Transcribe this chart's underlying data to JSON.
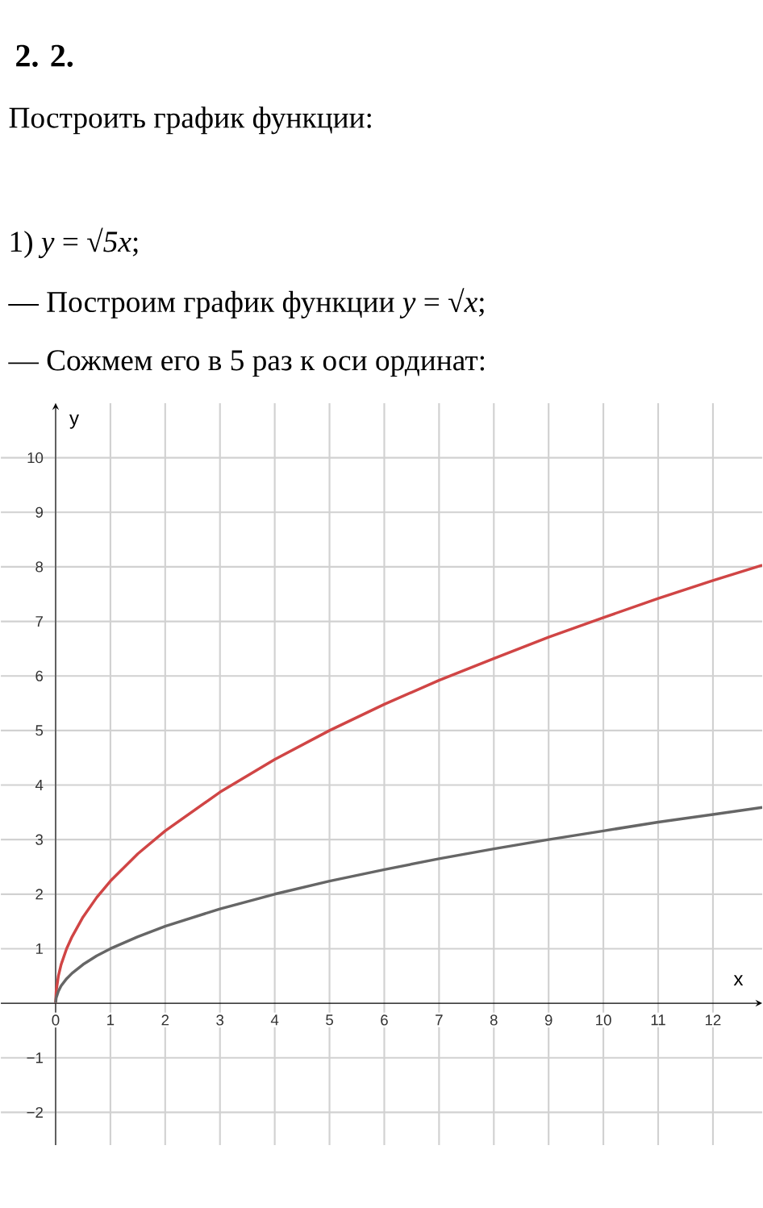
{
  "chart_data": {
    "type": "line",
    "title": "**2. 2.**",
    "subtitle": "Построить график функции:",
    "annotations": [
      "1) *y* = √*5x*;",
      "— Построим график функции *y* = √*x*;",
      "— Сожмем его в 5 раз к оси ординат:"
    ],
    "xlabel": "x",
    "ylabel": "y",
    "series": [
      {
        "color": "#d04545",
        "x": [
          0,
          0.01,
          0.05,
          0.1,
          0.2,
          0.3,
          0.5,
          0.75,
          1,
          1.5,
          2,
          3,
          4,
          5,
          6,
          7,
          8,
          9,
          10,
          11,
          12,
          12.9
        ],
        "values": [
          0,
          0.22,
          0.5,
          0.71,
          1,
          1.22,
          1.58,
          1.94,
          2.24,
          2.74,
          3.16,
          3.87,
          4.47,
          5,
          5.48,
          5.92,
          6.32,
          6.71,
          7.07,
          7.42,
          7.75,
          8.03
        ]
      },
      {
        "color": "#666666",
        "x": [
          0,
          0.01,
          0.05,
          0.1,
          0.2,
          0.3,
          0.5,
          0.75,
          1,
          1.5,
          2,
          3,
          4,
          5,
          6,
          7,
          8,
          9,
          10,
          11,
          12,
          12.9
        ],
        "values": [
          0,
          0.1,
          0.22,
          0.32,
          0.45,
          0.55,
          0.71,
          0.87,
          1,
          1.22,
          1.41,
          1.73,
          2,
          2.24,
          2.45,
          2.65,
          2.83,
          3,
          3.16,
          3.32,
          3.46,
          3.59
        ]
      }
    ],
    "xlim": [
      -1,
      12.9
    ],
    "ylim": [
      -2.6,
      11
    ],
    "xticks": [
      0,
      1,
      2,
      3,
      4,
      5,
      6,
      7,
      8,
      9,
      10,
      11,
      12
    ],
    "yticks": [
      {
        "value": -2,
        "label": "−2"
      },
      {
        "value": -1,
        "label": "−1"
      },
      1,
      2,
      3,
      4,
      5,
      6,
      7,
      8,
      9,
      10
    ],
    "grid": true,
    "marker": "none",
    "line_style": "solid"
  }
}
